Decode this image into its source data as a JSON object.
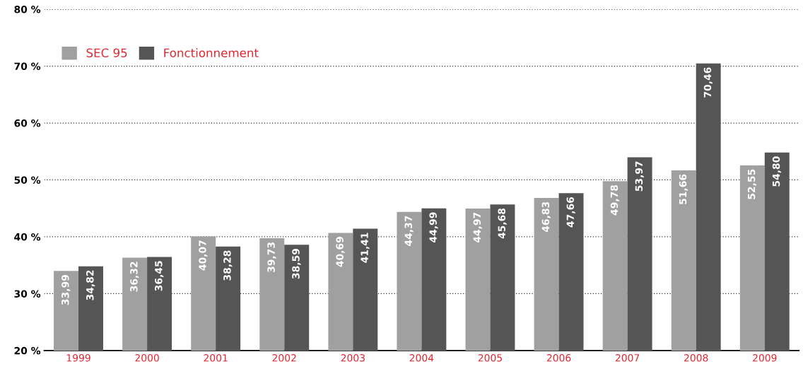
{
  "chart_data": {
    "type": "bar",
    "categories": [
      "1999",
      "2000",
      "2001",
      "2002",
      "2003",
      "2004",
      "2005",
      "2006",
      "2007",
      "2008",
      "2009"
    ],
    "series": [
      {
        "name": "SEC 95",
        "color": "#a0a0a0",
        "values": [
          33.99,
          36.32,
          40.07,
          39.73,
          40.69,
          44.37,
          44.97,
          46.83,
          49.78,
          51.66,
          52.55
        ],
        "value_labels": [
          "33,99",
          "36,32",
          "40,07",
          "39,73",
          "40,69",
          "44,37",
          "44,97",
          "46,83",
          "49,78",
          "51,66",
          "52,55"
        ]
      },
      {
        "name": "Fonctionnement",
        "color": "#555555",
        "values": [
          34.82,
          36.45,
          38.28,
          38.59,
          41.41,
          44.99,
          45.68,
          47.66,
          53.97,
          70.46,
          54.8
        ],
        "value_labels": [
          "34,82",
          "36,45",
          "38,28",
          "38,59",
          "41,41",
          "44,99",
          "45,68",
          "47,66",
          "53,97",
          "70,46",
          "54,80"
        ]
      }
    ],
    "ylim": [
      20,
      80
    ],
    "yticks": [
      {
        "value": 20,
        "label": "20 %"
      },
      {
        "value": 30,
        "label": "30 %"
      },
      {
        "value": 40,
        "label": "40 %"
      },
      {
        "value": 50,
        "label": "50 %"
      },
      {
        "value": 60,
        "label": "60 %"
      },
      {
        "value": 70,
        "label": "70 %"
      },
      {
        "value": 80,
        "label": "80 %"
      }
    ],
    "grid": "y",
    "legend": "top left"
  }
}
